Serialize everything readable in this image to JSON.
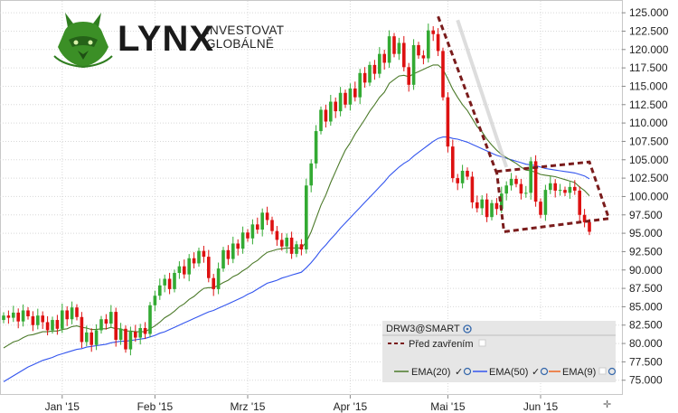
{
  "brand": {
    "name": "LYNX",
    "tagline_line1": "INVESTOVAT",
    "tagline_line2": "GLOBÁLNĚ"
  },
  "colors": {
    "bull": "#33aa33",
    "bear": "#dd1111",
    "ema20": "#4c7a2a",
    "ema50": "#3355ee",
    "ema9": "#ee6622",
    "pattern": "#7a1c1c",
    "grid": "#d8d8d8",
    "panel": "#e6e6e6"
  },
  "legend": {
    "symbol": "DRW3@SMART",
    "pattern_label": "Před zavřením",
    "ema20_label": "EMA(20)",
    "ema50_label": "EMA(50)",
    "ema9_label": "EMA(9)"
  },
  "chart_data": {
    "type": "candlestick",
    "x_labels": [
      "Jan '15",
      "Feb '15",
      "Mrz '15",
      "Apr '15",
      "Mai '15",
      "Jun '15"
    ],
    "y_ticks": [
      "125.000",
      "122.500",
      "120.000",
      "117.500",
      "115.000",
      "112.500",
      "110.000",
      "107.500",
      "105.000",
      "102.500",
      "100.000",
      "97.500",
      "95.000",
      "92.500",
      "90.000",
      "87.500",
      "85.000",
      "82.500",
      "80.000",
      "77.500",
      "75.000"
    ],
    "ylim": [
      73,
      126
    ],
    "x_tick_index": [
      12,
      31,
      50,
      71,
      91,
      110
    ],
    "close": [
      83.8,
      83.5,
      84.2,
      83.0,
      84.5,
      83.7,
      82.5,
      83.8,
      82.9,
      81.8,
      83.2,
      82.0,
      84.5,
      83.3,
      84.9,
      83.6,
      80.2,
      81.5,
      79.8,
      81.8,
      83.3,
      82.7,
      84.3,
      80.5,
      82.0,
      79.2,
      81.6,
      80.8,
      82.1,
      81.3,
      85.2,
      86.5,
      87.9,
      88.8,
      87.4,
      89.6,
      90.5,
      89.4,
      91.6,
      90.9,
      92.6,
      91.8,
      88.9,
      87.4,
      90.2,
      92.7,
      91.5,
      93.6,
      92.9,
      95.1,
      94.3,
      96.2,
      95.5,
      97.8,
      96.8,
      95.3,
      94.1,
      93.2,
      94.4,
      92.2,
      93.5,
      92.8,
      101.5,
      104.5,
      108.9,
      111.8,
      110.2,
      112.9,
      111.6,
      114.1,
      112.5,
      114.7,
      113.5,
      116.8,
      115.5,
      117.9,
      116.7,
      119.4,
      118.2,
      121.8,
      119.4,
      120.9,
      117.6,
      115.2,
      120.6,
      119.2,
      118.8,
      122.6,
      122.1,
      119.8,
      113.5,
      106.8,
      102.5,
      101.8,
      103.5,
      102.7,
      99.2,
      98.4,
      99.6,
      97.2,
      99.1,
      98.3,
      100.4,
      101.5,
      102.4,
      101.7,
      100.4,
      100.5,
      104.8,
      99.3,
      97.5,
      100.9,
      101.8,
      100.8,
      100.9,
      100.5,
      101.3,
      100.8,
      97.5,
      96.5,
      95.2
    ],
    "ema20": [
      79.4,
      79.8,
      80.2,
      80.4,
      80.8,
      81.1,
      81.2,
      81.4,
      81.6,
      81.6,
      81.7,
      81.7,
      81.9,
      82.0,
      82.3,
      82.4,
      82.2,
      82.1,
      81.9,
      81.9,
      82.0,
      82.0,
      82.2,
      82.0,
      82.0,
      81.7,
      81.7,
      81.6,
      81.6,
      81.6,
      82.0,
      82.4,
      82.9,
      83.5,
      83.9,
      84.4,
      85.0,
      85.4,
      86.0,
      86.4,
      87.0,
      87.5,
      87.6,
      87.6,
      87.9,
      88.3,
      88.6,
      89.1,
      89.4,
      89.9,
      90.3,
      90.9,
      91.3,
      91.9,
      92.4,
      92.6,
      92.8,
      92.9,
      93.0,
      93.0,
      93.0,
      93.0,
      93.8,
      95.2,
      97.0,
      98.8,
      100.2,
      101.9,
      103.4,
      104.9,
      106.3,
      107.3,
      108.5,
      109.5,
      110.5,
      111.6,
      112.5,
      113.5,
      114.2,
      115.4,
      115.9,
      116.4,
      116.5,
      116.3,
      116.7,
      117.0,
      117.3,
      117.6,
      117.9,
      117.9,
      117.3,
      116.0,
      114.6,
      113.5,
      112.5,
      111.7,
      110.6,
      109.5,
      108.8,
      107.8,
      107.0,
      106.3,
      105.7,
      105.3,
      104.9,
      104.5,
      104.0,
      103.6,
      103.5,
      103.3,
      103.0,
      102.9,
      102.8,
      102.7,
      102.5,
      102.3,
      102.1,
      101.9,
      101.3,
      100.8,
      100.1
    ],
    "ema50": [
      74.8,
      75.2,
      75.6,
      76.0,
      76.4,
      76.8,
      77.1,
      77.4,
      77.7,
      77.9,
      78.1,
      78.4,
      78.6,
      78.8,
      79.0,
      79.2,
      79.3,
      79.5,
      79.6,
      79.7,
      79.8,
      79.9,
      80.1,
      80.2,
      80.3,
      80.3,
      80.4,
      80.5,
      80.6,
      80.7,
      80.9,
      81.1,
      81.4,
      81.6,
      81.9,
      82.2,
      82.5,
      82.8,
      83.1,
      83.4,
      83.7,
      84.0,
      84.3,
      84.5,
      84.8,
      85.1,
      85.4,
      85.7,
      86.0,
      86.3,
      86.7,
      87.0,
      87.4,
      87.8,
      88.2,
      88.4,
      88.6,
      88.9,
      89.1,
      89.3,
      89.5,
      89.7,
      90.3,
      91.0,
      91.8,
      92.7,
      93.4,
      94.2,
      94.9,
      95.7,
      96.4,
      97.1,
      97.8,
      98.5,
      99.2,
      99.9,
      100.6,
      101.3,
      102.0,
      102.8,
      103.4,
      104.0,
      104.5,
      104.9,
      105.5,
      106.0,
      106.5,
      107.0,
      107.5,
      107.9,
      108.1,
      108.1,
      107.9,
      107.8,
      107.6,
      107.4,
      107.1,
      106.8,
      106.5,
      106.2,
      105.9,
      105.6,
      105.4,
      105.2,
      105.0,
      104.8,
      104.6,
      104.4,
      104.3,
      104.2,
      104.0,
      103.8,
      103.7,
      103.6,
      103.5,
      103.4,
      103.3,
      103.2,
      103.0,
      102.8,
      102.4
    ]
  }
}
